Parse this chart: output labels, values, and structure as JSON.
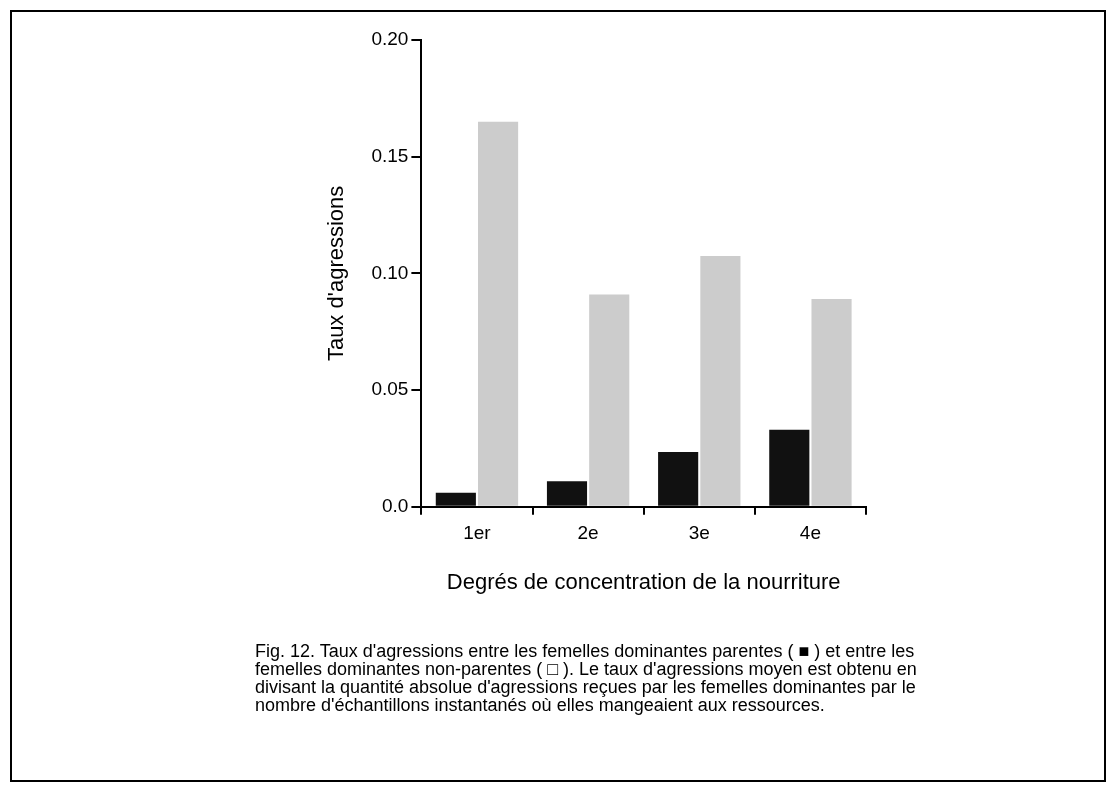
{
  "chart_data": {
    "type": "bar",
    "xlabel": "Degrés de concentration de la nourriture",
    "ylabel": "Taux d'agressions",
    "categories": [
      "1er",
      "2e",
      "3e",
      "4e"
    ],
    "series": [
      {
        "color": "#111111",
        "values": [
          0.006,
          0.011,
          0.0235,
          0.033
        ]
      },
      {
        "color": "#cccccc",
        "values": [
          0.165,
          0.091,
          0.1075,
          0.089
        ]
      }
    ],
    "ylim": [
      0,
      0.2
    ],
    "yticks": [
      {
        "value": 0,
        "label": "0.0"
      },
      {
        "value": 0.05,
        "label": "0.05"
      },
      {
        "value": 0.1,
        "label": "0.10"
      },
      {
        "value": 0.15,
        "label": "0.15"
      },
      {
        "value": 0.2,
        "label": "0.20"
      }
    ],
    "grid": false,
    "legend": false,
    "annotations": [
      "Fig. 12. Taux d'agressions entre les femelles dominantes parentes ( ■ ) et entre les femelles dominantes non-parentes ( □ ). Le taux d'agressions moyen est obtenu en divisant la quantité absolue d'agressions reçues par les femelles dominantes par le nombre d'échantillons instantanés où elles mangeaient aux ressources."
    ]
  }
}
